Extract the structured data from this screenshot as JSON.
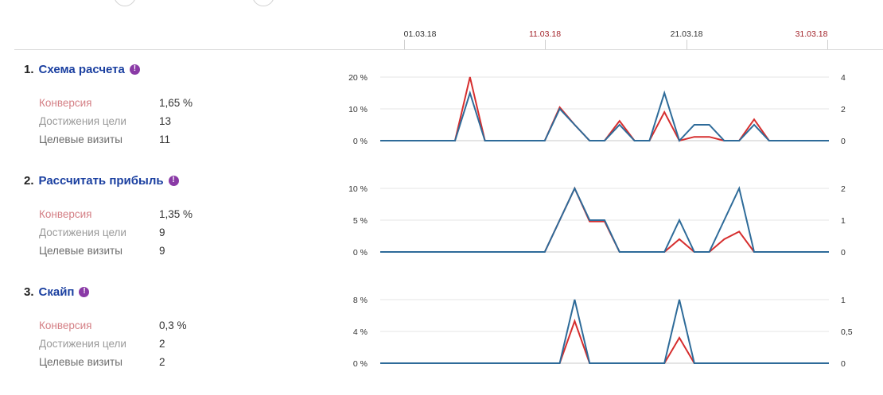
{
  "colors": {
    "conversion_line": "#d62e2e",
    "visits_line": "#2e6b99",
    "goal_link": "#1a3fa0",
    "info_icon": "#8a3aa6",
    "date_normal": "#333333",
    "date_weekend": "#a3232a"
  },
  "timeline": {
    "ticks": [
      {
        "label": "01.03.18",
        "weekend": false
      },
      {
        "label": "11.03.18",
        "weekend": true
      },
      {
        "label": "21.03.18",
        "weekend": false
      },
      {
        "label": "31.03.18",
        "weekend": true
      }
    ]
  },
  "info_icon_glyph": "!",
  "goals": [
    {
      "number": "1.",
      "name": "Схема расчета",
      "metrics": [
        {
          "label": "Конверсия",
          "value": "1,65 %"
        },
        {
          "label": "Достижения цели",
          "value": "13"
        },
        {
          "label": "Целевые визиты",
          "value": "11"
        }
      ]
    },
    {
      "number": "2.",
      "name": "Рассчитать прибыль",
      "metrics": [
        {
          "label": "Конверсия",
          "value": "1,35 %"
        },
        {
          "label": "Достижения цели",
          "value": "9"
        },
        {
          "label": "Целевые визиты",
          "value": "9"
        }
      ]
    },
    {
      "number": "3.",
      "name": "Скайп",
      "metrics": [
        {
          "label": "Конверсия",
          "value": "0,3 %"
        },
        {
          "label": "Достижения цели",
          "value": "2"
        },
        {
          "label": "Целевые визиты",
          "value": "2"
        }
      ]
    }
  ],
  "chart_data": [
    {
      "type": "line",
      "x_start": "01.03.18",
      "left_axis": {
        "ticks": [
          "20 %",
          "10 %",
          "0 %"
        ],
        "range": [
          0,
          20
        ]
      },
      "right_axis": {
        "ticks": [
          "4",
          "2",
          "0"
        ],
        "range": [
          0,
          4
        ]
      },
      "series": [
        {
          "color": "red",
          "axis": "left",
          "values": [
            0,
            0,
            0,
            0,
            0,
            20,
            0,
            0,
            0,
            0,
            0,
            10.5,
            5,
            0,
            0,
            6.2,
            0,
            0,
            9,
            0,
            1.2,
            1.2,
            0,
            0,
            6.7,
            0,
            0,
            0
          ]
        },
        {
          "color": "blue",
          "axis": "right",
          "values": [
            0,
            0,
            0,
            0,
            0,
            3,
            0,
            0,
            0,
            0,
            0,
            2,
            1,
            0,
            0,
            1,
            0,
            0,
            3,
            0,
            1,
            1,
            0,
            0,
            1,
            0,
            0,
            0
          ]
        }
      ]
    },
    {
      "type": "line",
      "x_start": "01.03.18",
      "left_axis": {
        "ticks": [
          "10 %",
          "5 %",
          "0 %"
        ],
        "range": [
          0,
          10
        ]
      },
      "right_axis": {
        "ticks": [
          "2",
          "1",
          "0"
        ],
        "range": [
          0,
          2
        ]
      },
      "series": [
        {
          "color": "red",
          "axis": "left",
          "values": [
            0,
            0,
            0,
            0,
            0,
            0,
            0,
            0,
            0,
            0,
            0,
            5,
            10,
            4.8,
            4.8,
            0,
            0,
            0,
            0,
            2,
            0,
            0,
            2,
            3.2,
            0,
            0,
            0,
            0
          ]
        },
        {
          "color": "blue",
          "axis": "right",
          "values": [
            0,
            0,
            0,
            0,
            0,
            0,
            0,
            0,
            0,
            0,
            0,
            1,
            2,
            1,
            1,
            0,
            0,
            0,
            0,
            1,
            0,
            0,
            1,
            2,
            0,
            0,
            0,
            0
          ]
        }
      ]
    },
    {
      "type": "line",
      "x_start": "01.03.18",
      "left_axis": {
        "ticks": [
          "8 %",
          "4 %",
          "0 %"
        ],
        "range": [
          0,
          8
        ]
      },
      "right_axis": {
        "ticks": [
          "1",
          "0,5",
          "0"
        ],
        "range": [
          0,
          1
        ]
      },
      "series": [
        {
          "color": "red",
          "axis": "left",
          "values": [
            0,
            0,
            0,
            0,
            0,
            0,
            0,
            0,
            0,
            0,
            0,
            0,
            5.3,
            0,
            0,
            0,
            0,
            0,
            0,
            3.2,
            0,
            0,
            0,
            0,
            0,
            0,
            0,
            0
          ]
        },
        {
          "color": "blue",
          "axis": "right",
          "values": [
            0,
            0,
            0,
            0,
            0,
            0,
            0,
            0,
            0,
            0,
            0,
            0,
            1,
            0,
            0,
            0,
            0,
            0,
            0,
            1,
            0,
            0,
            0,
            0,
            0,
            0,
            0,
            0
          ]
        }
      ]
    }
  ]
}
